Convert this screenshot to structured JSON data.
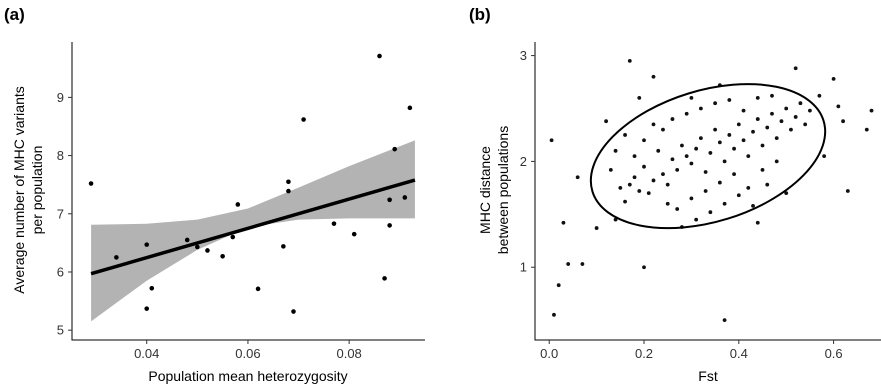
{
  "chart_data": [
    {
      "type": "scatter",
      "panel_label": "(a)",
      "xlabel": "Population mean heterozygosity",
      "ylabel_lines": [
        "Average number of MHC variants",
        "per population"
      ],
      "xlim": [
        0.028,
        0.094
      ],
      "ylim": [
        4.9,
        9.9
      ],
      "x_ticks": [
        0.04,
        0.06,
        0.08
      ],
      "x_tick_labels": [
        "0.04",
        "0.06",
        "0.08"
      ],
      "y_ticks": [
        5,
        6,
        7,
        8,
        9
      ],
      "y_tick_labels": [
        "5",
        "6",
        "7",
        "8",
        "9"
      ],
      "grid": false,
      "points": [
        [
          0.029,
          7.52
        ],
        [
          0.034,
          6.25
        ],
        [
          0.04,
          6.47
        ],
        [
          0.041,
          5.72
        ],
        [
          0.04,
          5.37
        ],
        [
          0.048,
          6.55
        ],
        [
          0.05,
          6.43
        ],
        [
          0.052,
          6.37
        ],
        [
          0.055,
          6.27
        ],
        [
          0.057,
          6.6
        ],
        [
          0.058,
          7.16
        ],
        [
          0.062,
          5.71
        ],
        [
          0.067,
          6.44
        ],
        [
          0.068,
          7.55
        ],
        [
          0.068,
          7.39
        ],
        [
          0.069,
          5.32
        ],
        [
          0.071,
          8.62
        ],
        [
          0.077,
          6.83
        ],
        [
          0.081,
          6.65
        ],
        [
          0.086,
          9.71
        ],
        [
          0.087,
          5.89
        ],
        [
          0.088,
          7.24
        ],
        [
          0.088,
          6.8
        ],
        [
          0.089,
          8.11
        ],
        [
          0.091,
          7.28
        ],
        [
          0.092,
          8.82
        ]
      ],
      "fit_line": {
        "x": [
          0.029,
          0.093
        ],
        "y": [
          5.97,
          7.58
        ]
      },
      "confidence_band": {
        "x": [
          0.029,
          0.04,
          0.05,
          0.06,
          0.07,
          0.08,
          0.093
        ],
        "lower": [
          5.15,
          5.85,
          6.38,
          6.77,
          6.9,
          6.92,
          6.92
        ],
        "upper": [
          6.81,
          6.83,
          6.9,
          7.09,
          7.45,
          7.82,
          8.26
        ]
      }
    },
    {
      "type": "scatter",
      "panel_label": "(b)",
      "xlabel": "Fst",
      "ylabel_lines": [
        "MHC distance",
        "between populations"
      ],
      "xlim": [
        -0.03,
        0.7
      ],
      "ylim": [
        0.35,
        3.1
      ],
      "x_ticks": [
        0.0,
        0.2,
        0.4,
        0.6
      ],
      "x_tick_labels": [
        "0.0",
        "0.2",
        "0.4",
        "0.6"
      ],
      "y_ticks": [
        1,
        2,
        3
      ],
      "y_tick_labels": [
        "1",
        "2",
        "3"
      ],
      "grid": false,
      "points": [
        [
          0.005,
          2.2
        ],
        [
          0.01,
          0.55
        ],
        [
          0.02,
          0.83
        ],
        [
          0.03,
          1.42
        ],
        [
          0.04,
          1.03
        ],
        [
          0.07,
          1.03
        ],
        [
          0.06,
          1.85
        ],
        [
          0.1,
          1.37
        ],
        [
          0.19,
          2.6
        ],
        [
          0.2,
          1.0
        ],
        [
          0.22,
          2.8
        ],
        [
          0.17,
          2.95
        ],
        [
          0.37,
          0.5
        ],
        [
          0.52,
          2.88
        ],
        [
          0.6,
          2.78
        ],
        [
          0.63,
          1.72
        ],
        [
          0.68,
          2.48
        ],
        [
          0.67,
          2.3
        ],
        [
          0.57,
          2.62
        ],
        [
          0.61,
          2.52
        ],
        [
          0.62,
          2.38
        ],
        [
          0.12,
          2.38
        ],
        [
          0.14,
          1.45
        ],
        [
          0.44,
          1.42
        ],
        [
          0.5,
          1.7
        ],
        [
          0.3,
          2.6
        ],
        [
          0.28,
          1.38
        ],
        [
          0.36,
          2.72
        ],
        [
          0.58,
          2.05
        ],
        [
          0.55,
          2.48
        ],
        [
          0.15,
          1.75
        ],
        [
          0.17,
          1.78
        ],
        [
          0.19,
          1.72
        ],
        [
          0.13,
          1.92
        ],
        [
          0.16,
          1.62
        ],
        [
          0.18,
          1.85
        ],
        [
          0.21,
          1.7
        ],
        [
          0.2,
          1.95
        ],
        [
          0.22,
          1.82
        ],
        [
          0.23,
          2.1
        ],
        [
          0.24,
          1.88
        ],
        [
          0.25,
          1.78
        ],
        [
          0.26,
          2.02
        ],
        [
          0.27,
          1.92
        ],
        [
          0.28,
          2.15
        ],
        [
          0.29,
          2.05
        ],
        [
          0.3,
          1.98
        ],
        [
          0.31,
          2.12
        ],
        [
          0.32,
          2.22
        ],
        [
          0.33,
          1.9
        ],
        [
          0.34,
          2.08
        ],
        [
          0.35,
          2.3
        ],
        [
          0.36,
          2.18
        ],
        [
          0.37,
          2.0
        ],
        [
          0.38,
          2.25
        ],
        [
          0.39,
          2.12
        ],
        [
          0.4,
          2.35
        ],
        [
          0.41,
          2.2
        ],
        [
          0.42,
          2.05
        ],
        [
          0.43,
          2.28
        ],
        [
          0.44,
          2.4
        ],
        [
          0.45,
          2.15
        ],
        [
          0.46,
          2.32
        ],
        [
          0.47,
          2.45
        ],
        [
          0.48,
          2.22
        ],
        [
          0.49,
          2.38
        ],
        [
          0.5,
          2.5
        ],
        [
          0.51,
          2.3
        ],
        [
          0.52,
          2.42
        ],
        [
          0.53,
          2.55
        ],
        [
          0.54,
          2.35
        ],
        [
          0.25,
          1.6
        ],
        [
          0.27,
          1.55
        ],
        [
          0.3,
          1.65
        ],
        [
          0.33,
          1.72
        ],
        [
          0.36,
          1.8
        ],
        [
          0.39,
          1.88
        ],
        [
          0.42,
          1.75
        ],
        [
          0.45,
          1.92
        ],
        [
          0.48,
          2.0
        ],
        [
          0.24,
          2.3
        ],
        [
          0.26,
          2.4
        ],
        [
          0.29,
          2.45
        ],
        [
          0.32,
          2.5
        ],
        [
          0.35,
          2.55
        ],
        [
          0.38,
          2.58
        ],
        [
          0.41,
          2.48
        ],
        [
          0.44,
          2.6
        ],
        [
          0.47,
          2.62
        ],
        [
          0.14,
          2.1
        ],
        [
          0.16,
          2.25
        ],
        [
          0.18,
          2.05
        ],
        [
          0.2,
          2.2
        ],
        [
          0.22,
          2.35
        ],
        [
          0.31,
          1.45
        ],
        [
          0.34,
          1.52
        ],
        [
          0.37,
          1.6
        ],
        [
          0.4,
          1.68
        ],
        [
          0.43,
          1.58
        ],
        [
          0.46,
          1.78
        ]
      ],
      "ellipse": {
        "cx": 0.335,
        "cy": 2.05,
        "rx_data": 0.255,
        "ry_data": 0.62,
        "angle_deg": -17
      }
    }
  ]
}
